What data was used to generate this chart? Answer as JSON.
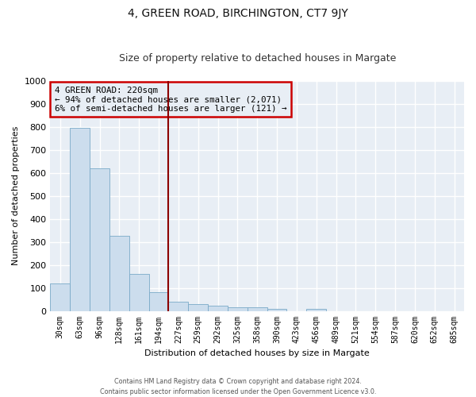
{
  "title": "4, GREEN ROAD, BIRCHINGTON, CT7 9JY",
  "subtitle": "Size of property relative to detached houses in Margate",
  "xlabel": "Distribution of detached houses by size in Margate",
  "ylabel": "Number of detached properties",
  "footer_line1": "Contains HM Land Registry data © Crown copyright and database right 2024.",
  "footer_line2": "Contains public sector information licensed under the Open Government Licence v3.0.",
  "bar_labels": [
    "30sqm",
    "63sqm",
    "96sqm",
    "128sqm",
    "161sqm",
    "194sqm",
    "227sqm",
    "259sqm",
    "292sqm",
    "325sqm",
    "358sqm",
    "390sqm",
    "423sqm",
    "456sqm",
    "489sqm",
    "521sqm",
    "554sqm",
    "587sqm",
    "620sqm",
    "652sqm",
    "685sqm"
  ],
  "bar_values": [
    120,
    795,
    620,
    325,
    160,
    80,
    40,
    28,
    22,
    17,
    16,
    10,
    0,
    10,
    0,
    0,
    0,
    0,
    0,
    0,
    0
  ],
  "bar_color": "#ccdded",
  "bar_edge_color": "#7aaac8",
  "annotation_text_line1": "4 GREEN ROAD: 220sqm",
  "annotation_text_line2": "← 94% of detached houses are smaller (2,071)",
  "annotation_text_line3": "6% of semi-detached houses are larger (121) →",
  "annotation_box_color": "#cc0000",
  "vline_color": "#8b0000",
  "ylim": [
    0,
    1000
  ],
  "background_color": "#ffffff",
  "plot_bg_color": "#e8eef5",
  "grid_color": "#ffffff",
  "title_fontsize": 10,
  "subtitle_fontsize": 9,
  "axis_label_fontsize": 8,
  "tick_fontsize": 7,
  "bar_width": 1.0,
  "vline_x": 5.5
}
